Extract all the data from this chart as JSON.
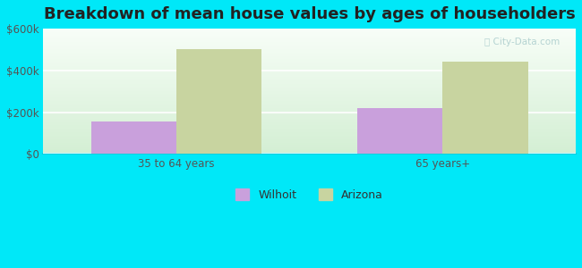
{
  "title": "Breakdown of mean house values by ages of householders",
  "categories": [
    "35 to 64 years",
    "65 years+"
  ],
  "wilhoit_values": [
    155000,
    220000
  ],
  "arizona_values": [
    500000,
    440000
  ],
  "wilhoit_color": "#c9a0dc",
  "arizona_color": "#c8d4a0",
  "background_color": "#00e8f8",
  "ylim": [
    0,
    600000
  ],
  "yticks": [
    0,
    200000,
    400000,
    600000
  ],
  "ytick_labels": [
    "$0",
    "$200k",
    "$400k",
    "$600k"
  ],
  "legend_wilhoit": "Wilhoit",
  "legend_arizona": "Arizona",
  "bar_width": 0.32,
  "title_fontsize": 13,
  "tick_fontsize": 8.5,
  "legend_fontsize": 9
}
